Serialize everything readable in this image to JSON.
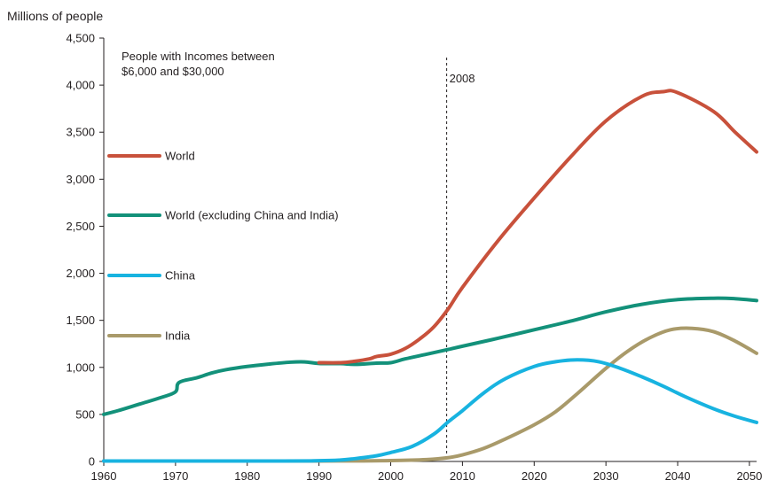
{
  "chart_data": {
    "type": "line",
    "ylabel": "Millions of people",
    "xlabel": "",
    "xlim": [
      1960,
      2051
    ],
    "ylim": [
      0,
      4500
    ],
    "x_ticks": [
      "1960",
      "1970",
      "1980",
      "1990",
      "2000",
      "2010",
      "2020",
      "2030",
      "2040",
      "2050"
    ],
    "y_ticks": [
      "0",
      "500",
      "1,000",
      "1,500",
      "2,000",
      "2,500",
      "3,000",
      "3,500",
      "4,000",
      "4,500"
    ],
    "annotation": [
      "People with Incomes between",
      "$6,000 and $30,000"
    ],
    "reference_line": {
      "x": 2007.8,
      "label": "2008"
    },
    "grid": false,
    "legend_position": "left",
    "series": [
      {
        "name": "World",
        "color": "#c8513b",
        "points": [
          [
            1990,
            1050
          ],
          [
            1993,
            1050
          ],
          [
            1995,
            1065
          ],
          [
            1997,
            1090
          ],
          [
            1998,
            1115
          ],
          [
            2000,
            1140
          ],
          [
            2002,
            1200
          ],
          [
            2004,
            1300
          ],
          [
            2006,
            1430
          ],
          [
            2008,
            1620
          ],
          [
            2010,
            1850
          ],
          [
            2015,
            2350
          ],
          [
            2020,
            2800
          ],
          [
            2025,
            3230
          ],
          [
            2030,
            3620
          ],
          [
            2035,
            3880
          ],
          [
            2038,
            3930
          ],
          [
            2040,
            3920
          ],
          [
            2045,
            3720
          ],
          [
            2048,
            3500
          ],
          [
            2051,
            3290
          ]
        ]
      },
      {
        "name": "World (excluding China and India)",
        "color": "#13917a",
        "points": [
          [
            1960,
            500
          ],
          [
            1962,
            540
          ],
          [
            1965,
            610
          ],
          [
            1968,
            680
          ],
          [
            1970,
            740
          ],
          [
            1970.5,
            840
          ],
          [
            1973,
            890
          ],
          [
            1975,
            940
          ],
          [
            1977,
            975
          ],
          [
            1980,
            1010
          ],
          [
            1983,
            1035
          ],
          [
            1986,
            1055
          ],
          [
            1988,
            1058
          ],
          [
            1990,
            1042
          ],
          [
            1993,
            1040
          ],
          [
            1995,
            1032
          ],
          [
            1998,
            1045
          ],
          [
            2000,
            1050
          ],
          [
            2002,
            1090
          ],
          [
            2005,
            1140
          ],
          [
            2008,
            1190
          ],
          [
            2010,
            1225
          ],
          [
            2015,
            1310
          ],
          [
            2020,
            1400
          ],
          [
            2025,
            1490
          ],
          [
            2030,
            1590
          ],
          [
            2035,
            1670
          ],
          [
            2040,
            1720
          ],
          [
            2045,
            1735
          ],
          [
            2048,
            1730
          ],
          [
            2051,
            1710
          ]
        ]
      },
      {
        "name": "China",
        "color": "#18b3e0",
        "points": [
          [
            1960,
            5
          ],
          [
            1985,
            5
          ],
          [
            1990,
            8
          ],
          [
            1993,
            15
          ],
          [
            1995,
            30
          ],
          [
            1998,
            60
          ],
          [
            2000,
            95
          ],
          [
            2003,
            160
          ],
          [
            2006,
            290
          ],
          [
            2008,
            420
          ],
          [
            2010,
            540
          ],
          [
            2013,
            730
          ],
          [
            2016,
            880
          ],
          [
            2020,
            1010
          ],
          [
            2023,
            1060
          ],
          [
            2026,
            1080
          ],
          [
            2029,
            1060
          ],
          [
            2032,
            990
          ],
          [
            2035,
            900
          ],
          [
            2038,
            800
          ],
          [
            2041,
            690
          ],
          [
            2045,
            560
          ],
          [
            2048,
            480
          ],
          [
            2051,
            415
          ]
        ]
      },
      {
        "name": "India",
        "color": "#a99a6a",
        "points": [
          [
            1960,
            5
          ],
          [
            1990,
            5
          ],
          [
            2000,
            10
          ],
          [
            2005,
            20
          ],
          [
            2008,
            40
          ],
          [
            2010,
            70
          ],
          [
            2013,
            140
          ],
          [
            2016,
            240
          ],
          [
            2020,
            390
          ],
          [
            2023,
            530
          ],
          [
            2026,
            720
          ],
          [
            2030,
            990
          ],
          [
            2033,
            1170
          ],
          [
            2036,
            1310
          ],
          [
            2039,
            1400
          ],
          [
            2042,
            1415
          ],
          [
            2045,
            1380
          ],
          [
            2048,
            1280
          ],
          [
            2051,
            1150
          ]
        ]
      }
    ]
  }
}
